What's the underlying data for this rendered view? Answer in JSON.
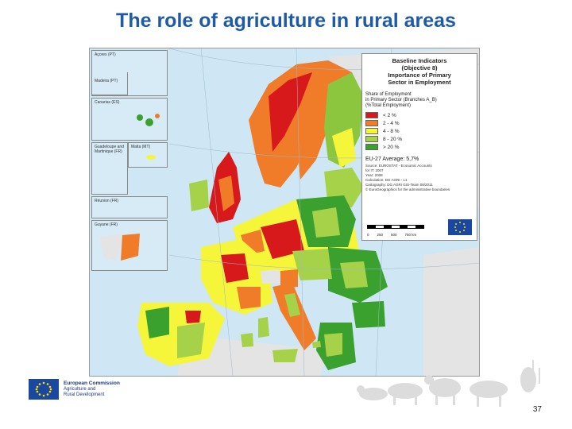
{
  "title": "The role of agriculture in rural areas",
  "insets": [
    {
      "label": "Açores (PT)"
    },
    {
      "label": "Madeira (PT)"
    },
    {
      "label": "Canarias (ES)"
    },
    {
      "label": "Guadeloupe and Martinique (FR)"
    },
    {
      "label": "Malta (MT)"
    },
    {
      "label": "Réunion (FR)"
    },
    {
      "label": "Guyane (FR)"
    }
  ],
  "legend": {
    "title_lines": [
      "Baseline Indicators",
      "(Objective 8)",
      "Importance of Primary",
      "Sector in Employment"
    ],
    "subtitle_lines": [
      "Share of Employment",
      "in Primary Sector (Branches A_B)",
      "(%Total Employment)"
    ],
    "items": [
      {
        "label": "< 2 %",
        "color": "#d7191c"
      },
      {
        "label": "2 - 4 %",
        "color": "#f07c2a"
      },
      {
        "label": "4 - 8 %",
        "color": "#f5f53a"
      },
      {
        "label": "8 - 20 %",
        "color": "#a6d24a"
      },
      {
        "label": "> 20 %",
        "color": "#3aa02e"
      }
    ],
    "average": "EU-27 Average: 5,7%",
    "source_lines": [
      "Source: EUROSTAT - Economic Accounts",
      "for IT: 2007",
      "Year: 2008",
      "Calculation: DG AGRI - L1",
      "Cartography: DG AGRI GIS-Team 08/2011",
      "© EuroGeographics for the administrative boundaries"
    ],
    "scale_labels": [
      "0",
      "250",
      "500",
      "750 km"
    ]
  },
  "footer": {
    "org_line1": "European Commission",
    "org_line2": "Agriculture and",
    "org_line3": "Rural Development",
    "page_number": "37"
  },
  "colors": {
    "title": "#1f5aa6",
    "sea": "#cfe6f4",
    "eu_blue": "#1a47a0",
    "eu_star": "#ffdd00"
  }
}
